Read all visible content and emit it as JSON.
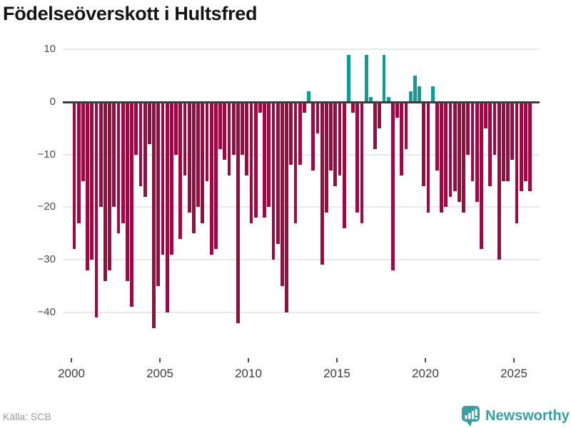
{
  "title": "Födelseöverskott i Hultsfred",
  "footer": {
    "source": "Källa: SCB",
    "brand": "Newsworthy"
  },
  "chart_data": {
    "type": "bar",
    "title": "Födelseöverskott i Hultsfred",
    "frequency": "quarterly",
    "start_year": 2000,
    "end_year": 2025,
    "x_tick_years": [
      2000,
      2005,
      2010,
      2015,
      2020,
      2025
    ],
    "y_ticks": [
      10,
      0,
      -10,
      -20,
      -30,
      -40
    ],
    "ylim": [
      -45,
      11
    ],
    "grid": true,
    "legend": "none",
    "colors": {
      "negative": "#9b0a43",
      "positive": "#0b9e99"
    },
    "categories": [
      "2000 Q1",
      "2000 Q2",
      "2000 Q3",
      "2000 Q4",
      "2001 Q1",
      "2001 Q2",
      "2001 Q3",
      "2001 Q4",
      "2002 Q1",
      "2002 Q2",
      "2002 Q3",
      "2002 Q4",
      "2003 Q1",
      "2003 Q2",
      "2003 Q3",
      "2003 Q4",
      "2004 Q1",
      "2004 Q2",
      "2004 Q3",
      "2004 Q4",
      "2005 Q1",
      "2005 Q2",
      "2005 Q3",
      "2005 Q4",
      "2006 Q1",
      "2006 Q2",
      "2006 Q3",
      "2006 Q4",
      "2007 Q1",
      "2007 Q2",
      "2007 Q3",
      "2007 Q4",
      "2008 Q1",
      "2008 Q2",
      "2008 Q3",
      "2008 Q4",
      "2009 Q1",
      "2009 Q2",
      "2009 Q3",
      "2009 Q4",
      "2010 Q1",
      "2010 Q2",
      "2010 Q3",
      "2010 Q4",
      "2011 Q1",
      "2011 Q2",
      "2011 Q3",
      "2011 Q4",
      "2012 Q1",
      "2012 Q2",
      "2012 Q3",
      "2012 Q4",
      "2013 Q1",
      "2013 Q2",
      "2013 Q3",
      "2013 Q4",
      "2014 Q1",
      "2014 Q2",
      "2014 Q3",
      "2014 Q4",
      "2015 Q1",
      "2015 Q2",
      "2015 Q3",
      "2015 Q4",
      "2016 Q1",
      "2016 Q2",
      "2016 Q3",
      "2016 Q4",
      "2017 Q1",
      "2017 Q2",
      "2017 Q3",
      "2017 Q4",
      "2018 Q1",
      "2018 Q2",
      "2018 Q3",
      "2018 Q4",
      "2019 Q1",
      "2019 Q2",
      "2019 Q3",
      "2019 Q4",
      "2020 Q1",
      "2020 Q2",
      "2020 Q3",
      "2020 Q4",
      "2021 Q1",
      "2021 Q2",
      "2021 Q3",
      "2021 Q4",
      "2022 Q1",
      "2022 Q2",
      "2022 Q3",
      "2022 Q4",
      "2023 Q1",
      "2023 Q2",
      "2023 Q3",
      "2023 Q4",
      "2024 Q1",
      "2024 Q2",
      "2024 Q3",
      "2024 Q4",
      "2025 Q1",
      "2025 Q2",
      "2025 Q3",
      "2025 Q4"
    ],
    "values": [
      -28,
      -23,
      -15,
      -32,
      -30,
      -41,
      -20,
      -34,
      -32,
      -20,
      -25,
      -23,
      -34,
      -39,
      -10,
      -16,
      -18,
      -8,
      -43,
      -35,
      -29,
      -40,
      -29,
      -10,
      -26,
      -14,
      -21,
      -25,
      -20,
      -23,
      -15,
      -29,
      -28,
      -9,
      -11,
      -14,
      -10,
      -42,
      -10,
      -14,
      -23,
      -22,
      -2,
      -22,
      -20,
      -30,
      -27,
      -35,
      -40,
      -12,
      -23,
      -12,
      -2,
      2,
      -13,
      -6,
      -31,
      -21,
      -13,
      -16,
      -14,
      -24,
      9,
      -2,
      -21,
      -23,
      9,
      1,
      -9,
      -5,
      9,
      1,
      -32,
      -3,
      -14,
      -9,
      2,
      5,
      3,
      -16,
      -21,
      3,
      -13,
      -21,
      -20,
      -18,
      -17,
      -19,
      -21,
      -10,
      -15,
      -19,
      -28,
      -5,
      -16,
      -10,
      -30,
      -15,
      -15,
      -11,
      -23,
      -17,
      -15,
      -17
    ]
  }
}
